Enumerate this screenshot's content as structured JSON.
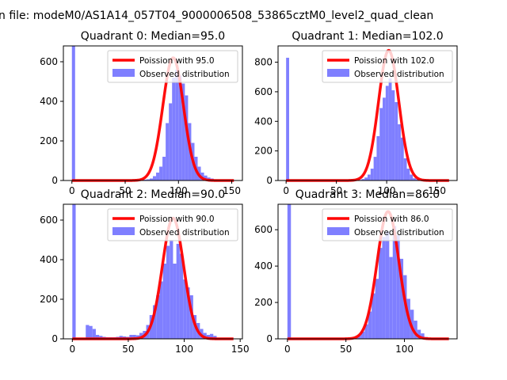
{
  "figure": {
    "suptitle": "n file: modeM0/AS1A14_057T04_9000006508_53865cztM0_level2_quad_clean"
  },
  "colors": {
    "bars": "#7f7fff",
    "fit": "#ff0000",
    "axes": "#000000",
    "legend_border": "#cccccc"
  },
  "chart_data": [
    {
      "type": "bar",
      "title": "Quadrant 0: Median=95.0",
      "xlim": [
        -8,
        160
      ],
      "ylim": [
        0,
        680
      ],
      "xticks": [
        0,
        50,
        100,
        150
      ],
      "yticks": [
        0,
        200,
        400,
        600
      ],
      "legend": {
        "line": "Poission with 95.0",
        "bars": "Observed distribution",
        "position": "upper right"
      },
      "bin_width": 3,
      "hist": {
        "x": [
          0,
          67,
          70,
          73,
          76,
          79,
          82,
          85,
          88,
          91,
          94,
          97,
          100,
          103,
          106,
          109,
          112,
          115,
          118,
          121,
          124,
          127,
          130,
          133,
          136,
          139
        ],
        "y": [
          680,
          4,
          6,
          10,
          22,
          40,
          70,
          120,
          290,
          390,
          520,
          560,
          530,
          490,
          430,
          290,
          190,
          120,
          70,
          40,
          25,
          15,
          10,
          5,
          3,
          2
        ]
      },
      "fit": {
        "mean": 95,
        "peak": 620,
        "sigma": 9.7,
        "xmin": 0,
        "xmax": 152
      }
    },
    {
      "type": "bar",
      "title": "Quadrant 1: Median=102.0",
      "xlim": [
        -8,
        170
      ],
      "ylim": [
        0,
        910
      ],
      "xticks": [
        0,
        50,
        100,
        150
      ],
      "yticks": [
        0,
        200,
        400,
        600,
        800
      ],
      "legend": {
        "line": "Poission with 102.0",
        "bars": "Observed distribution",
        "position": "upper right"
      },
      "bin_width": 3,
      "hist": {
        "x": [
          0,
          72,
          75,
          78,
          81,
          84,
          87,
          90,
          93,
          96,
          99,
          102,
          105,
          108,
          111,
          114,
          117,
          120,
          123,
          126,
          129,
          132,
          135,
          138
        ],
        "y": [
          830,
          4,
          10,
          20,
          40,
          80,
          160,
          300,
          490,
          560,
          640,
          690,
          610,
          530,
          380,
          290,
          150,
          80,
          40,
          15,
          8,
          5,
          3,
          2
        ]
      },
      "fit": {
        "mean": 102,
        "peak": 880,
        "sigma": 10.1,
        "xmin": 0,
        "xmax": 162
      }
    },
    {
      "type": "bar",
      "title": "Quadrant 2: Median=90.0",
      "xlim": [
        -8,
        152
      ],
      "ylim": [
        0,
        680
      ],
      "xticks": [
        0,
        50,
        100,
        150
      ],
      "yticks": [
        0,
        200,
        400,
        600
      ],
      "legend": {
        "line": "Poission with 90.0",
        "bars": "Observed distribution",
        "position": "upper right"
      },
      "bin_width": 3,
      "hist": {
        "x": [
          0,
          12,
          15,
          18,
          21,
          24,
          27,
          30,
          33,
          36,
          39,
          42,
          45,
          48,
          51,
          54,
          57,
          60,
          63,
          66,
          69,
          72,
          75,
          78,
          81,
          84,
          87,
          90,
          93,
          96,
          99,
          102,
          105,
          108,
          111,
          114,
          117,
          120,
          123,
          126,
          129
        ],
        "y": [
          680,
          70,
          65,
          50,
          20,
          15,
          10,
          8,
          8,
          8,
          10,
          15,
          12,
          10,
          20,
          20,
          18,
          30,
          40,
          70,
          120,
          170,
          220,
          290,
          380,
          470,
          500,
          380,
          480,
          430,
          300,
          260,
          220,
          120,
          80,
          50,
          30,
          20,
          25,
          15,
          5
        ]
      },
      "fit": {
        "mean": 90,
        "peak": 610,
        "sigma": 9.5,
        "xmin": 0,
        "xmax": 144
      }
    },
    {
      "type": "bar",
      "title": "Quadrant 3: Median=86.0",
      "xlim": [
        -8,
        145
      ],
      "ylim": [
        0,
        740
      ],
      "xticks": [
        0,
        50,
        100
      ],
      "yticks": [
        0,
        200,
        400,
        600
      ],
      "legend": {
        "line": "Poission with 86.0",
        "bars": "Observed distribution",
        "position": "upper right"
      },
      "bin_width": 3,
      "hist": {
        "x": [
          0,
          54,
          57,
          60,
          63,
          66,
          69,
          72,
          75,
          78,
          81,
          84,
          87,
          90,
          93,
          96,
          99,
          102,
          105,
          108,
          111,
          114,
          117
        ],
        "y": [
          740,
          4,
          8,
          20,
          40,
          80,
          150,
          250,
          330,
          500,
          560,
          590,
          450,
          620,
          570,
          440,
          350,
          220,
          160,
          100,
          50,
          30,
          10
        ]
      },
      "fit": {
        "mean": 86,
        "peak": 700,
        "sigma": 9.3,
        "xmin": 0,
        "xmax": 138
      }
    }
  ]
}
